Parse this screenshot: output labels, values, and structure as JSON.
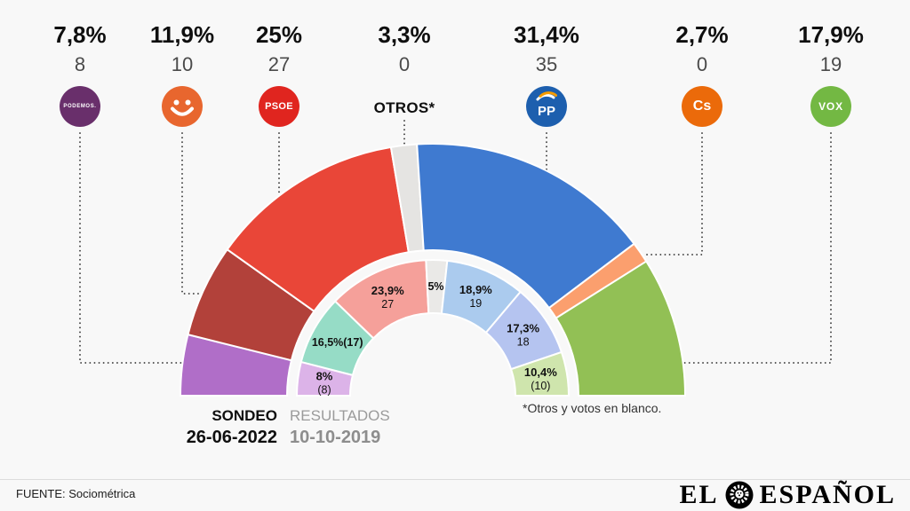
{
  "background": "#f8f8f8",
  "header": {
    "parties": [
      {
        "pct": "7,8%",
        "seats": "8",
        "logo_text": "PODEMOS.",
        "color": "#692f6b"
      },
      {
        "pct": "11,9%",
        "seats": "10",
        "logo_icon": "smiley",
        "color": "#e8662e"
      },
      {
        "pct": "25%",
        "seats": "27",
        "logo_text": "PSOE",
        "color": "#e0251f"
      },
      {
        "pct": "3,3%",
        "seats": "0",
        "label": "OTROS*"
      },
      {
        "pct": "31,4%",
        "seats": "35",
        "logo_text": "PP",
        "color": "#1d5fae",
        "accent": "#f59b00"
      },
      {
        "pct": "2,7%",
        "seats": "0",
        "logo_text": "Cs",
        "color": "#eb6a0a"
      },
      {
        "pct": "17,9%",
        "seats": "19",
        "logo_text": "VOX",
        "color": "#73b843"
      }
    ]
  },
  "chart_data": {
    "type": "half-donut",
    "layout": "semicircle 180deg, outer ring = sondeo, inner ring = resultados",
    "rings": [
      {
        "name": "SONDEO 26-06-2022",
        "position": "outer",
        "segments": [
          {
            "party": "PODEMOS",
            "pct": 7.8,
            "seats": 8,
            "color": "#b06ec8"
          },
          {
            "party": "smiley-party",
            "pct": 11.9,
            "seats": 10,
            "color": "#b2413a"
          },
          {
            "party": "PSOE",
            "pct": 25,
            "seats": 27,
            "color": "#e94638"
          },
          {
            "party": "OTROS",
            "pct": 3.3,
            "seats": 0,
            "color": "#e5e4e2"
          },
          {
            "party": "PP",
            "pct": 31.4,
            "seats": 35,
            "color": "#3f7ad0"
          },
          {
            "party": "Cs",
            "pct": 2.7,
            "seats": 0,
            "color": "#fb9f6e"
          },
          {
            "party": "VOX",
            "pct": 17.9,
            "seats": 19,
            "color": "#92c055"
          }
        ]
      },
      {
        "name": "RESULTADOS 10-10-2019",
        "position": "inner",
        "segments": [
          {
            "party": "PODEMOS",
            "pct": 8,
            "seats": 8,
            "color": "#dcb3e8",
            "label_lines": [
              "8%",
              "(8)"
            ]
          },
          {
            "party": "smiley-party",
            "pct": 16.5,
            "seats": 17,
            "color": "#96dcc6",
            "label_lines": [
              "16,5%(17)"
            ]
          },
          {
            "party": "PSOE",
            "pct": 23.9,
            "seats": 27,
            "color": "#f5a09a",
            "label_lines": [
              "23,9%",
              "27"
            ]
          },
          {
            "party": "OTROS",
            "pct": 5,
            "seats": 0,
            "color": "#eae9e7",
            "label_lines": [
              "5%"
            ]
          },
          {
            "party": "PP",
            "pct": 18.9,
            "seats": 19,
            "color": "#abcbee",
            "label_lines": [
              "18,9%",
              "19"
            ]
          },
          {
            "party": "Cs",
            "pct": 17.3,
            "seats": 18,
            "color": "#b5c4f0",
            "label_lines": [
              "17,3%",
              "18"
            ]
          },
          {
            "party": "VOX",
            "pct": 10.4,
            "seats": 10,
            "color": "#cfe5ad",
            "label_lines": [
              "10,4%",
              "(10)"
            ]
          }
        ]
      }
    ]
  },
  "legend": {
    "sondeo_label": "SONDEO",
    "sondeo_date": "26-06-2022",
    "resultados_label": "RESULTADOS",
    "resultados_date": "10-10-2019"
  },
  "footnote": "*Otros y votos en blanco.",
  "footer": {
    "source": "FUENTE: Sociométrica",
    "brand_el": "EL",
    "brand_espanol": "ESPAÑOL"
  }
}
